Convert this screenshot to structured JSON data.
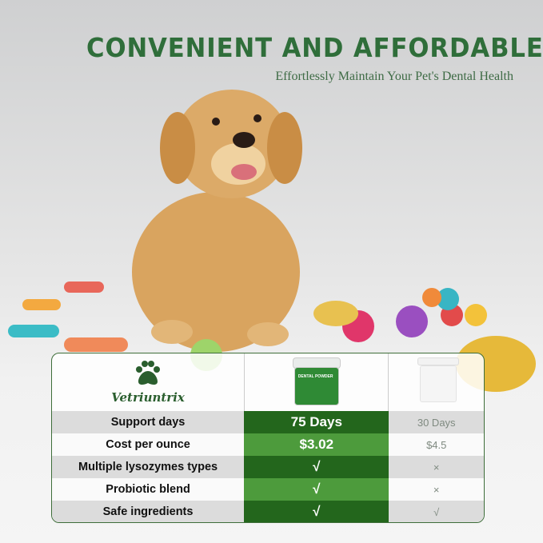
{
  "header": {
    "title": "CONVENIENT AND AFFORDABLE",
    "subtitle": "Effortlessly Maintain Your Pet's Dental Health"
  },
  "brand": {
    "name": "Vetriuntrix",
    "logo_icon": "paw-icon",
    "color": "#2a5e2e"
  },
  "product": {
    "jar_label": "DENTAL POWDER"
  },
  "comparison": {
    "rows": [
      {
        "feature": "Support days",
        "ours": "75 Days",
        "other": "30 Days"
      },
      {
        "feature": "Cost per ounce",
        "ours": "$3.02",
        "other": "$4.5"
      },
      {
        "feature": "Multiple lysozymes types",
        "ours": "√",
        "other": "×"
      },
      {
        "feature": "Probiotic blend",
        "ours": "√",
        "other": "×"
      },
      {
        "feature": "Safe ingredients",
        "ours": "√",
        "other": "√"
      }
    ]
  },
  "colors": {
    "dark_green": "#23661c",
    "light_green": "#4d9b3c",
    "title_green": "#2f6e3a"
  }
}
